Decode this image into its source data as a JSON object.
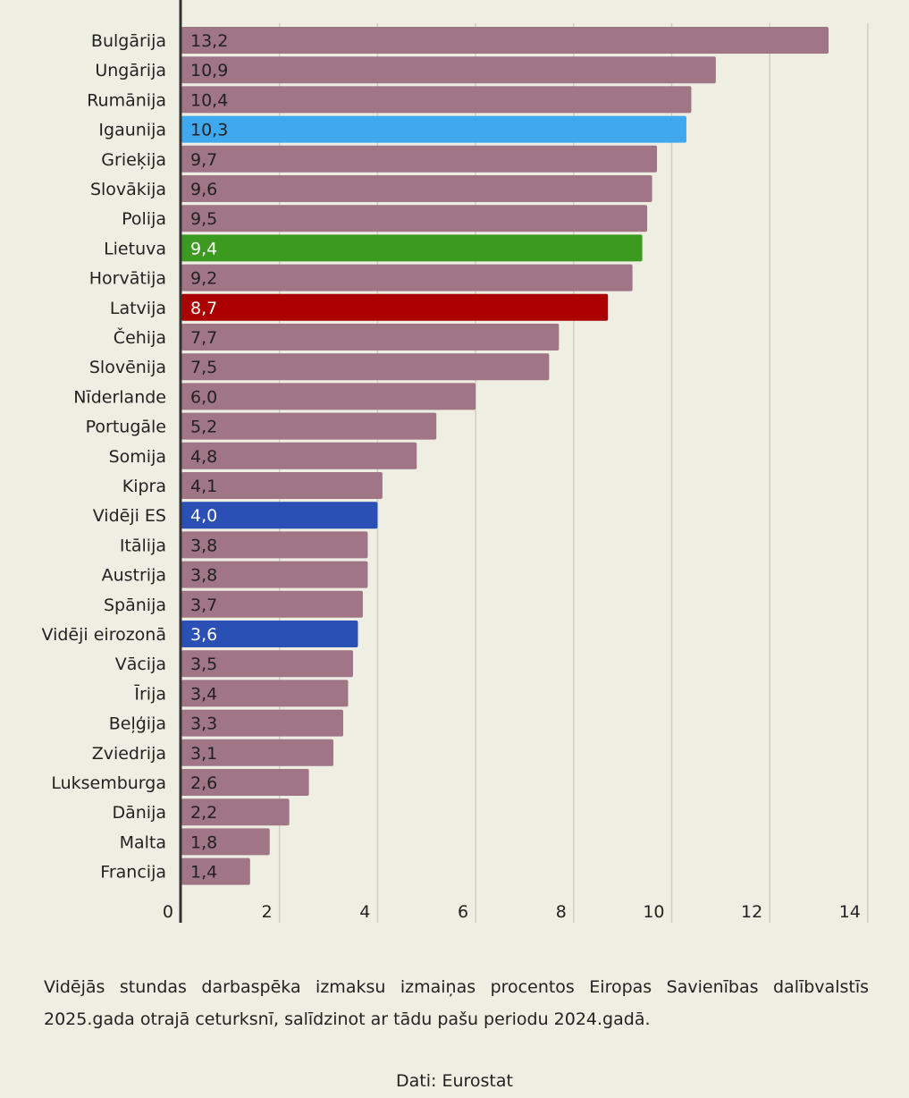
{
  "chart_data": {
    "type": "bar",
    "orientation": "horizontal",
    "categories": [
      "Bulgārija",
      "Ungārija",
      "Rumānija",
      "Igaunija",
      "Grieķija",
      "Slovākija",
      "Polija",
      "Lietuva",
      "Horvātija",
      "Latvija",
      "Čehija",
      "Slovēnija",
      "Nīderlande",
      "Portugāle",
      "Somija",
      "Kipra",
      "Vidēji ES",
      "Itālija",
      "Austrija",
      "Spānija",
      "Vidēji eirozonā",
      "Vācija",
      "Īrija",
      "Beļģija",
      "Zviedrija",
      "Luksemburga",
      "Dānija",
      "Malta",
      "Francija"
    ],
    "values": [
      13.2,
      10.9,
      10.4,
      10.3,
      9.7,
      9.6,
      9.5,
      9.4,
      9.2,
      8.7,
      7.7,
      7.5,
      6.0,
      5.2,
      4.8,
      4.1,
      4.0,
      3.8,
      3.8,
      3.7,
      3.6,
      3.5,
      3.4,
      3.3,
      3.1,
      2.6,
      2.2,
      1.8,
      1.4
    ],
    "value_labels": [
      "13,2",
      "10,9",
      "10,4",
      "10,3",
      "9,7",
      "9,6",
      "9,5",
      "9,4",
      "9,2",
      "8,7",
      "7,7",
      "7,5",
      "6,0",
      "5,2",
      "4,8",
      "4,1",
      "4,0",
      "3,8",
      "3,8",
      "3,7",
      "3,6",
      "3,5",
      "3,4",
      "3,3",
      "3,1",
      "2,6",
      "2,2",
      "1,8",
      "1,4"
    ],
    "bar_colors": [
      "#a07585",
      "#a07585",
      "#a07585",
      "#3fa8ee",
      "#a07585",
      "#a07585",
      "#a07585",
      "#3d9a21",
      "#a07585",
      "#aa0000",
      "#a07585",
      "#a07585",
      "#a07585",
      "#a07585",
      "#a07585",
      "#a07585",
      "#2a4fb5",
      "#a07585",
      "#a07585",
      "#a07585",
      "#2a4fb5",
      "#a07585",
      "#a07585",
      "#a07585",
      "#a07585",
      "#a07585",
      "#a07585",
      "#a07585",
      "#a07585"
    ],
    "label_colors": [
      "#222222",
      "#222222",
      "#222222",
      "#222222",
      "#222222",
      "#222222",
      "#222222",
      "#ffffff",
      "#222222",
      "#ffffff",
      "#222222",
      "#222222",
      "#222222",
      "#222222",
      "#222222",
      "#222222",
      "#ffffff",
      "#222222",
      "#222222",
      "#222222",
      "#ffffff",
      "#222222",
      "#222222",
      "#222222",
      "#222222",
      "#222222",
      "#222222",
      "#222222",
      "#222222"
    ],
    "xlim": [
      0,
      14
    ],
    "x_ticks": [
      0,
      2,
      4,
      6,
      8,
      10,
      12,
      14
    ],
    "grid": true,
    "title": "",
    "xlabel": "",
    "ylabel": ""
  },
  "caption": "Vidējās stundas darbaspēka izmaksu izmaiņas procentos Eiropas Savienības dalībvalstīs 2025.gada otrajā ceturksnī, salīdzinot ar tādu pašu periodu 2024.gadā.",
  "source": "Dati: Eurostat",
  "colors": {
    "background": "#efeee3",
    "bar_default": "#a07585",
    "grid": "#cfcec3",
    "axis": "#333333"
  }
}
